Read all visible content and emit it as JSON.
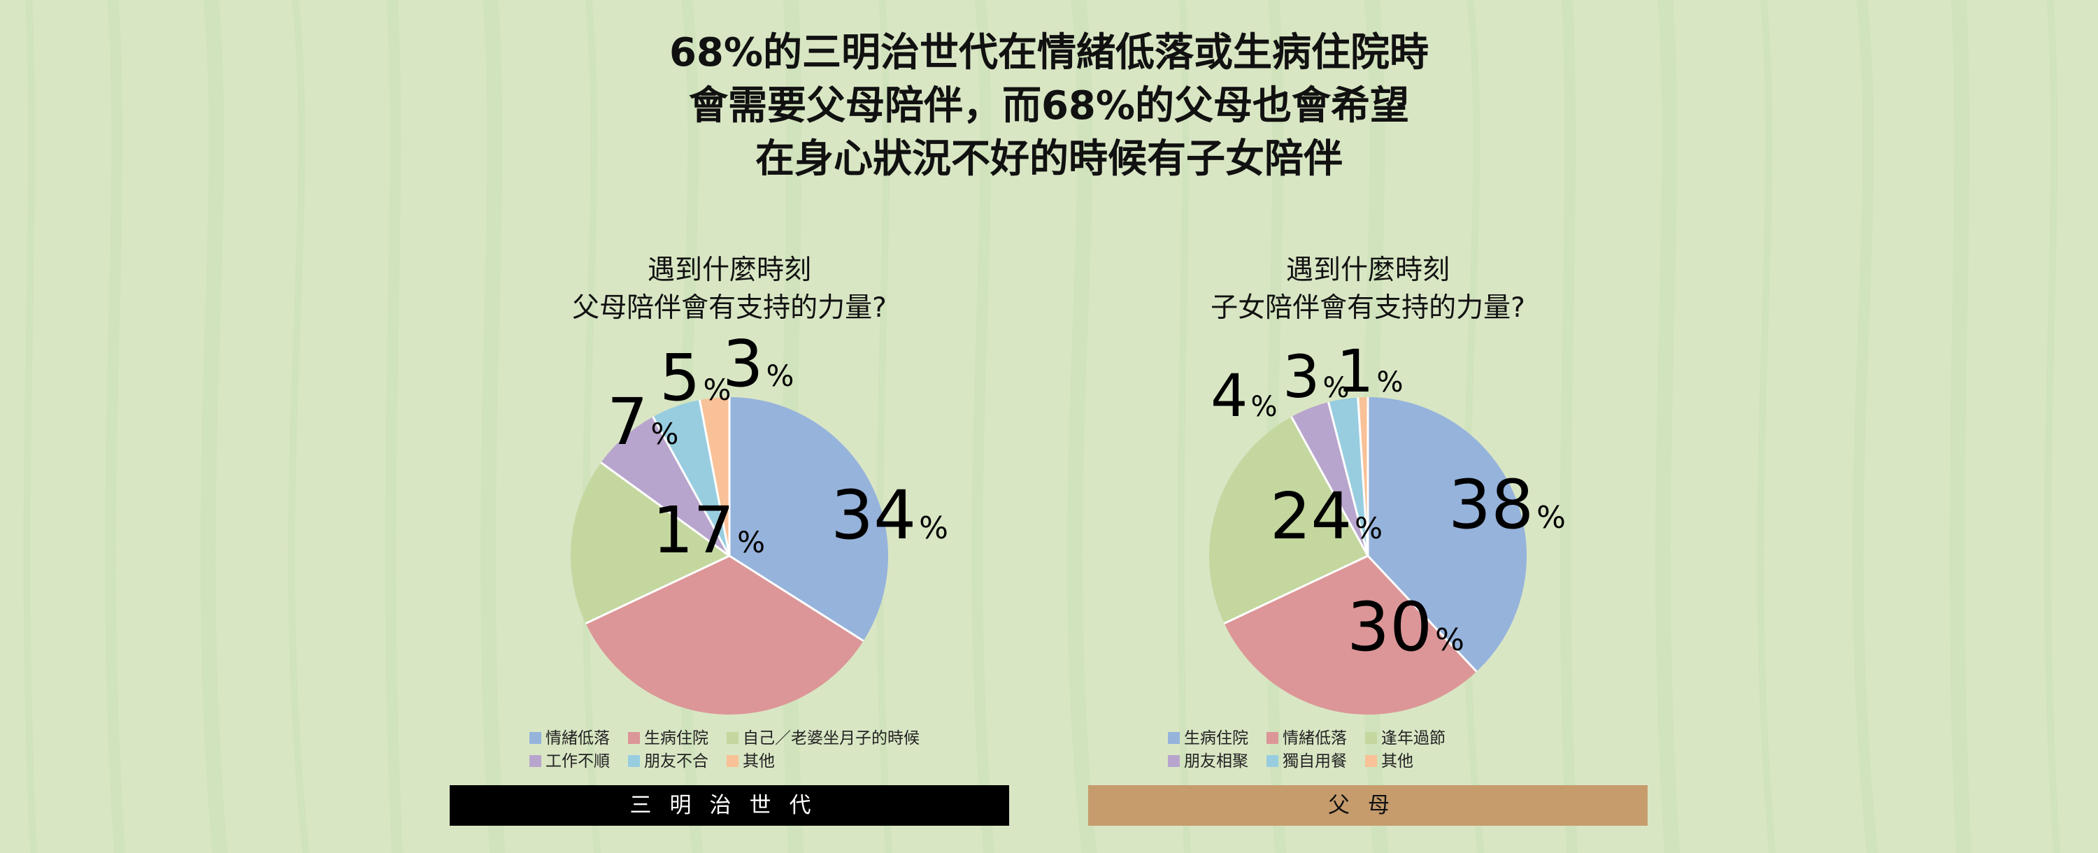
{
  "title": {
    "line1": "68%的三明治世代在情緒低落或生病住院時",
    "line2": "會需要父母陪伴，而68%的父母也會希望",
    "line3": "在身心狀況不好的時候有子女陪伴"
  },
  "colors": {
    "background": "#d9e6c4",
    "stripe": "#c8e0b6",
    "blue": "#96b3dc",
    "red": "#dc9697",
    "green": "#c4d79f",
    "purple": "#b8a5cd",
    "cyan": "#98cde0",
    "orange": "#f8c197"
  },
  "chart_data": [
    {
      "type": "pie",
      "subtitle": [
        "遇到什麼時刻",
        "父母陪伴會有支持的力量?"
      ],
      "slices": [
        {
          "label": "情緒低落",
          "value": 34,
          "color": "#96b3dc"
        },
        {
          "label": "生病住院",
          "value": 34,
          "color": "#dc9697"
        },
        {
          "label": "自己／老婆坐月子的時候",
          "value": 17,
          "color": "#c4d79f"
        },
        {
          "label": "工作不順",
          "value": 7,
          "color": "#b8a5cd"
        },
        {
          "label": "朋友不合",
          "value": 5,
          "color": "#98cde0"
        },
        {
          "label": "其他",
          "value": 3,
          "color": "#f8c197"
        }
      ],
      "data_labels": [
        "34",
        "",
        "17",
        "7",
        "5",
        "3"
      ],
      "percent_sign": "%",
      "legend_rows": [
        [
          0,
          1,
          2
        ],
        [
          3,
          4,
          5
        ]
      ],
      "legend": "bottom",
      "footer": {
        "label": "三明治世代",
        "background": "#000000",
        "color": "#ffffff"
      }
    },
    {
      "type": "pie",
      "subtitle": [
        "遇到什麼時刻",
        "子女陪伴會有支持的力量?"
      ],
      "slices": [
        {
          "label": "生病住院",
          "value": 38,
          "color": "#96b3dc"
        },
        {
          "label": "情緒低落",
          "value": 30,
          "color": "#dc9697"
        },
        {
          "label": "逢年過節",
          "value": 24,
          "color": "#c4d79f"
        },
        {
          "label": "朋友相聚",
          "value": 4,
          "color": "#b8a5cd"
        },
        {
          "label": "獨自用餐",
          "value": 3,
          "color": "#98cde0"
        },
        {
          "label": "其他",
          "value": 1,
          "color": "#f8c197"
        }
      ],
      "data_labels": [
        "38",
        "30",
        "24",
        "4",
        "3",
        "1"
      ],
      "percent_sign": "%",
      "legend_rows": [
        [
          0,
          1,
          2
        ],
        [
          3,
          4,
          5
        ]
      ],
      "legend": "bottom",
      "footer": {
        "label": "父母",
        "background": "#c69c6d",
        "color": "#111111"
      }
    }
  ]
}
